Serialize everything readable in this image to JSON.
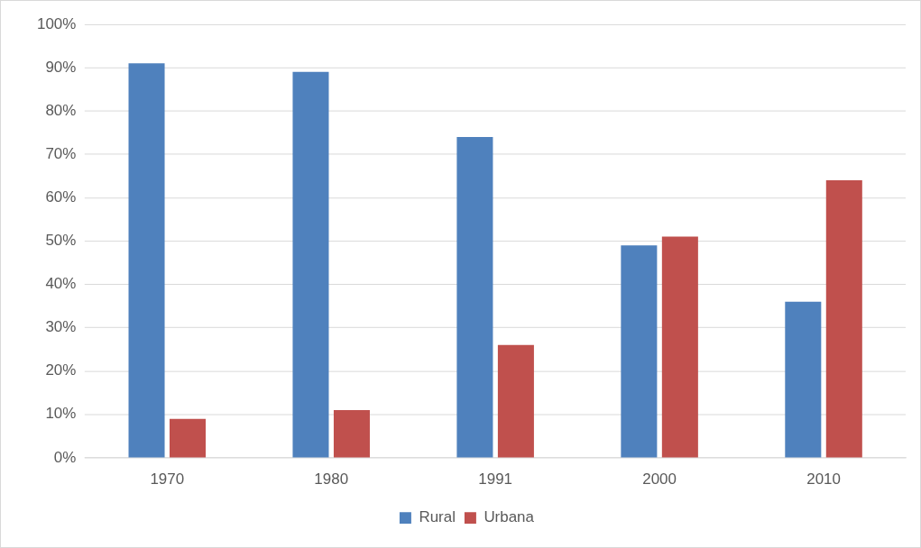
{
  "chart_data": {
    "type": "bar",
    "categories": [
      "1970",
      "1980",
      "1991",
      "2000",
      "2010"
    ],
    "series": [
      {
        "name": "Rural",
        "color": "#4f81bd",
        "values": [
          91,
          89,
          74,
          49,
          36
        ]
      },
      {
        "name": "Urbana",
        "color": "#c0504d",
        "values": [
          9,
          11,
          26,
          51,
          64
        ]
      }
    ],
    "ylim": [
      0,
      100
    ],
    "yticks": [
      {
        "value": 0,
        "label": "0%"
      },
      {
        "value": 10,
        "label": "10%"
      },
      {
        "value": 20,
        "label": "20%"
      },
      {
        "value": 30,
        "label": "30%"
      },
      {
        "value": 40,
        "label": "40%"
      },
      {
        "value": 50,
        "label": "50%"
      },
      {
        "value": 60,
        "label": "60%"
      },
      {
        "value": 70,
        "label": "70%"
      },
      {
        "value": 80,
        "label": "80%"
      },
      {
        "value": 90,
        "label": "90%"
      },
      {
        "value": 100,
        "label": "100%"
      }
    ],
    "grid": "y",
    "legend": "bottom"
  }
}
